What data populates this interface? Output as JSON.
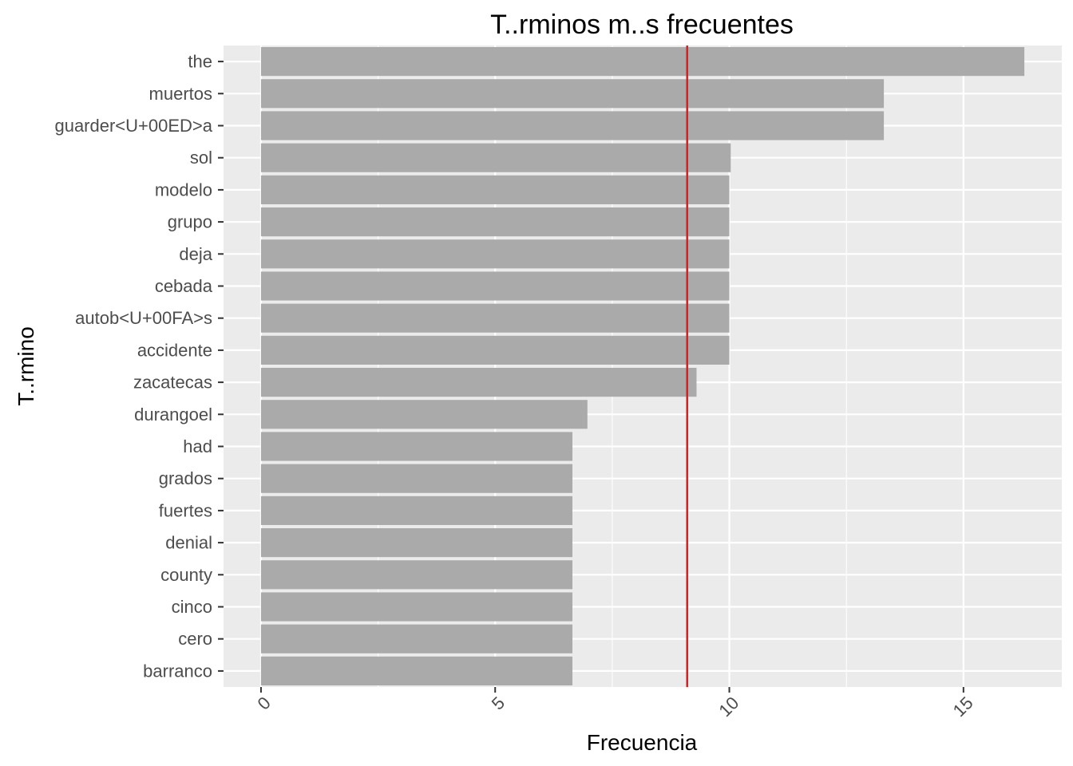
{
  "chart_data": {
    "type": "bar",
    "orientation": "horizontal",
    "title": "T..rminos m..s frecuentes",
    "xlabel": "Frecuencia",
    "ylabel": "T..rmino",
    "categories": [
      "the",
      "muertos",
      "guarder<U+00ED>a",
      "sol",
      "modelo",
      "grupo",
      "deja",
      "cebada",
      "autob<U+00FA>s",
      "accidente",
      "zacatecas",
      "durangoel",
      "had",
      "grados",
      "fuertes",
      "denial",
      "county",
      "cinco",
      "cero",
      "barranco"
    ],
    "values": [
      16.3,
      13.3,
      13.3,
      10.03,
      10.0,
      10.0,
      10.0,
      10.0,
      10.0,
      10.0,
      9.3,
      6.97,
      6.65,
      6.65,
      6.65,
      6.65,
      6.65,
      6.65,
      6.65,
      6.65
    ],
    "xlim": [
      -0.8,
      17.1
    ],
    "xticks": [
      0,
      5,
      10,
      15
    ],
    "xtick_labels": [
      "0",
      "5",
      "10",
      "15"
    ],
    "reference_line": {
      "value": 9.1,
      "color": "#e31a1c"
    },
    "bar_color": "#aaaaaa",
    "panel_color": "#ebebeb",
    "grid": true,
    "legend": "none"
  }
}
